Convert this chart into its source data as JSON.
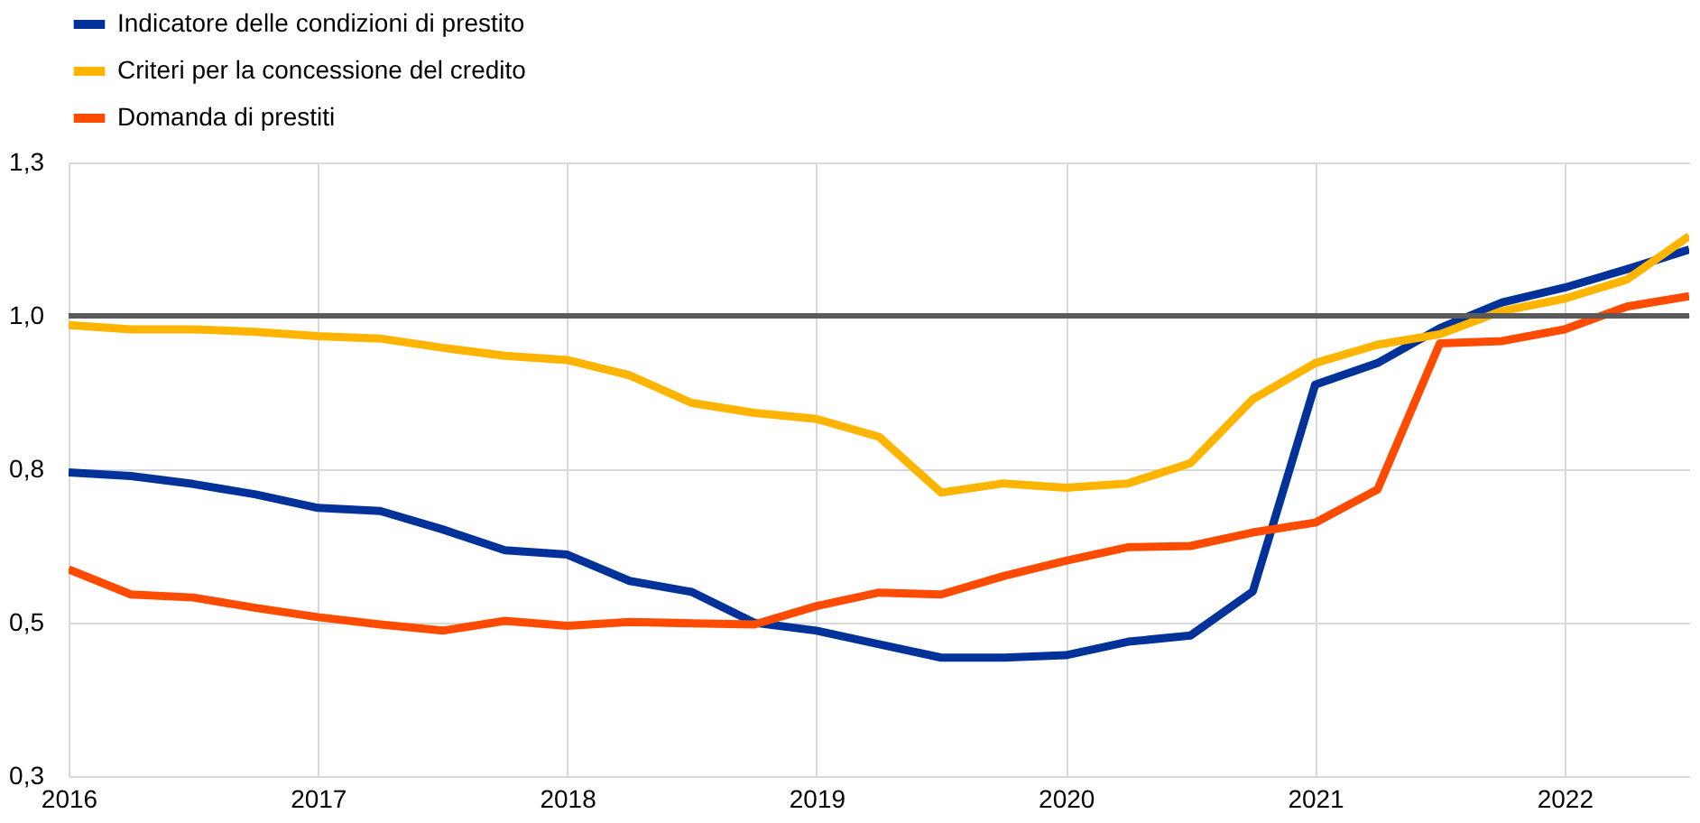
{
  "chart_data": {
    "type": "line",
    "x": [
      2016,
      2016.25,
      2016.5,
      2016.75,
      2017,
      2017.25,
      2017.5,
      2017.75,
      2018,
      2018.25,
      2018.5,
      2018.75,
      2019,
      2019.25,
      2019.5,
      2019.75,
      2020,
      2020.25,
      2020.5,
      2020.75,
      2021,
      2021.25,
      2021.5,
      2021.75,
      2022,
      2022.25,
      2022.5
    ],
    "series": [
      {
        "name": "Indicatore delle condizioni di prestito",
        "color": "#003299",
        "values": [
          0.745,
          0.739,
          0.726,
          0.709,
          0.687,
          0.682,
          0.652,
          0.618,
          0.611,
          0.568,
          0.55,
          0.5,
          0.487,
          0.465,
          0.443,
          0.443,
          0.447,
          0.469,
          0.479,
          0.551,
          0.888,
          0.923,
          0.98,
          1.022,
          1.046,
          1.076,
          1.108
        ]
      },
      {
        "name": "Criteri per la concessione del credito",
        "color": "#ffb400",
        "values": [
          0.985,
          0.978,
          0.978,
          0.974,
          0.967,
          0.963,
          0.948,
          0.935,
          0.928,
          0.903,
          0.858,
          0.842,
          0.832,
          0.803,
          0.712,
          0.727,
          0.72,
          0.727,
          0.76,
          0.864,
          0.923,
          0.953,
          0.97,
          1.008,
          1.028,
          1.059,
          1.13
        ]
      },
      {
        "name": "Domanda di prestiti",
        "color": "#ff4b00",
        "values": [
          0.587,
          0.546,
          0.541,
          0.524,
          0.509,
          0.497,
          0.487,
          0.503,
          0.495,
          0.501,
          0.499,
          0.497,
          0.527,
          0.549,
          0.546,
          0.576,
          0.601,
          0.623,
          0.625,
          0.647,
          0.663,
          0.717,
          0.955,
          0.959,
          0.978,
          1.015,
          1.032
        ]
      }
    ],
    "xlim": [
      2016,
      2022.5
    ],
    "xticks": [
      2016,
      2017,
      2018,
      2019,
      2020,
      2021,
      2022
    ],
    "ylim": [
      0.25,
      1.25
    ],
    "yticks": [
      {
        "value": 0.25,
        "label": "0,3"
      },
      {
        "value": 0.5,
        "label": "0,5"
      },
      {
        "value": 0.75,
        "label": "0,8"
      },
      {
        "value": 1.0,
        "label": "1,0"
      },
      {
        "value": 1.25,
        "label": "1,3"
      }
    ],
    "ref_lines": [
      {
        "axis": "y",
        "value": 1.0,
        "color": "#5a5a5a"
      }
    ],
    "grid": true,
    "legend": "top left",
    "marker": "none",
    "line_style": "solid"
  }
}
